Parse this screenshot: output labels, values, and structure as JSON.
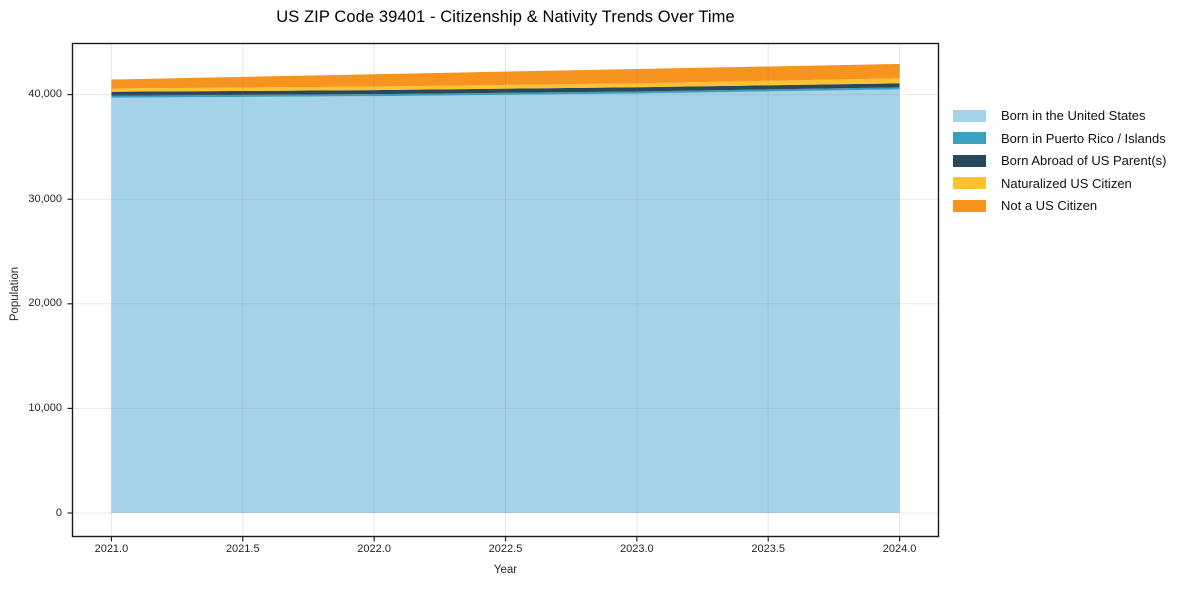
{
  "chart_data": {
    "type": "area",
    "stacked": true,
    "title": "US ZIP Code 39401 - Citizenship & Nativity Trends Over Time",
    "xlabel": "Year",
    "ylabel": "Population",
    "grid": true,
    "legend_position": "right-outside",
    "x": [
      2021,
      2022,
      2023,
      2024
    ],
    "series": [
      {
        "name": "Born in the United States",
        "color": "#a4d3e9",
        "values": [
          39700,
          39850,
          40100,
          40500
        ]
      },
      {
        "name": "Born in Puerto Rico / Islands",
        "color": "#3ba0bd",
        "values": [
          190,
          190,
          200,
          190
        ]
      },
      {
        "name": "Born Abroad of US Parent(s)",
        "color": "#28485c",
        "values": [
          380,
          390,
          400,
          390
        ]
      },
      {
        "name": "Naturalized US Citizen",
        "color": "#fcc232",
        "values": [
          310,
          340,
          380,
          480
        ]
      },
      {
        "name": "Not a US Citizen",
        "color": "#f6941f",
        "values": [
          860,
          1180,
          1370,
          1370
        ]
      }
    ],
    "totals": [
      41440,
      41950,
      42450,
      42930
    ],
    "xlim": [
      2020.85,
      2024.15
    ],
    "ylim": [
      -2294,
      44933
    ],
    "x_ticks": [
      {
        "v": 2021.0,
        "label": "2021.0"
      },
      {
        "v": 2021.5,
        "label": "2021.5"
      },
      {
        "v": 2022.0,
        "label": "2022.0"
      },
      {
        "v": 2022.5,
        "label": "2022.5"
      },
      {
        "v": 2023.0,
        "label": "2023.0"
      },
      {
        "v": 2023.5,
        "label": "2023.5"
      },
      {
        "v": 2024.0,
        "label": "2024.0"
      }
    ],
    "y_ticks": [
      {
        "v": 0,
        "label": "0"
      },
      {
        "v": 10000,
        "label": "10,000"
      },
      {
        "v": 20000,
        "label": "20,000"
      },
      {
        "v": 30000,
        "label": "30,000"
      },
      {
        "v": 40000,
        "label": "40,000"
      }
    ],
    "colors": {
      "spine": "#1a1a1a",
      "tick": "#262626",
      "grid": "rgba(130,130,130,0.18)"
    }
  }
}
